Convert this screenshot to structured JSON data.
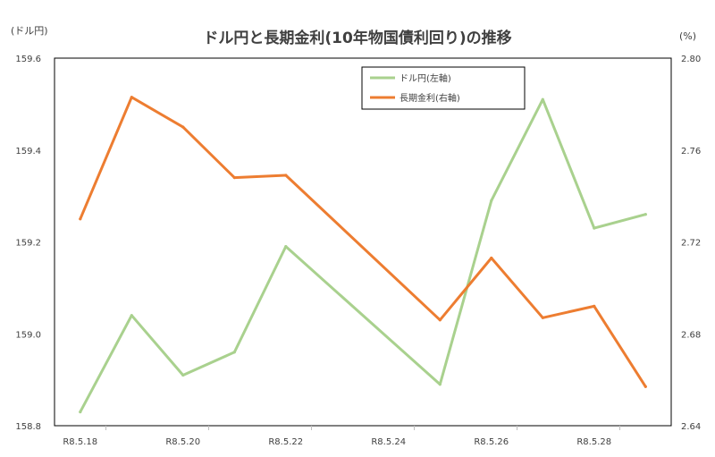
{
  "chart_data": {
    "type": "line",
    "title": "ドル円と長期金利(10年物国債利回り)の推移",
    "y_left_unit": "(ドル円)",
    "y_right_unit": "(%)",
    "x": [
      "R8.5.18",
      "R8.5.19",
      "R8.5.20",
      "R8.5.21",
      "R8.5.22",
      "R8.5.25",
      "R8.5.26",
      "R8.5.27",
      "R8.5.28",
      "R8.5.29"
    ],
    "x_tick_labels": [
      "R8.5.18",
      "R8.5.20",
      "R8.5.22",
      "R8.5.24",
      "R8.5.26",
      "R8.5.28"
    ],
    "y_left_range": [
      158.8,
      159.6
    ],
    "y_left_ticks": [
      "158.8",
      "159.0",
      "159.2",
      "159.4",
      "159.6"
    ],
    "y_right_range": [
      2.64,
      2.8
    ],
    "y_right_ticks": [
      "2.64",
      "2.68",
      "2.72",
      "2.76",
      "2.80"
    ],
    "grid": false,
    "legend_position": "top-right",
    "series": [
      {
        "name": "ドル円(左軸)",
        "axis": "left",
        "color": "#a9d18e",
        "values": [
          158.83,
          159.04,
          158.91,
          158.96,
          159.19,
          158.89,
          159.29,
          159.51,
          159.23,
          159.26
        ]
      },
      {
        "name": "長期金利(右軸)",
        "axis": "right",
        "color": "#ed7d31",
        "values": [
          2.73,
          2.783,
          2.77,
          2.748,
          2.749,
          2.686,
          2.713,
          2.687,
          2.692,
          2.657
        ]
      }
    ]
  }
}
